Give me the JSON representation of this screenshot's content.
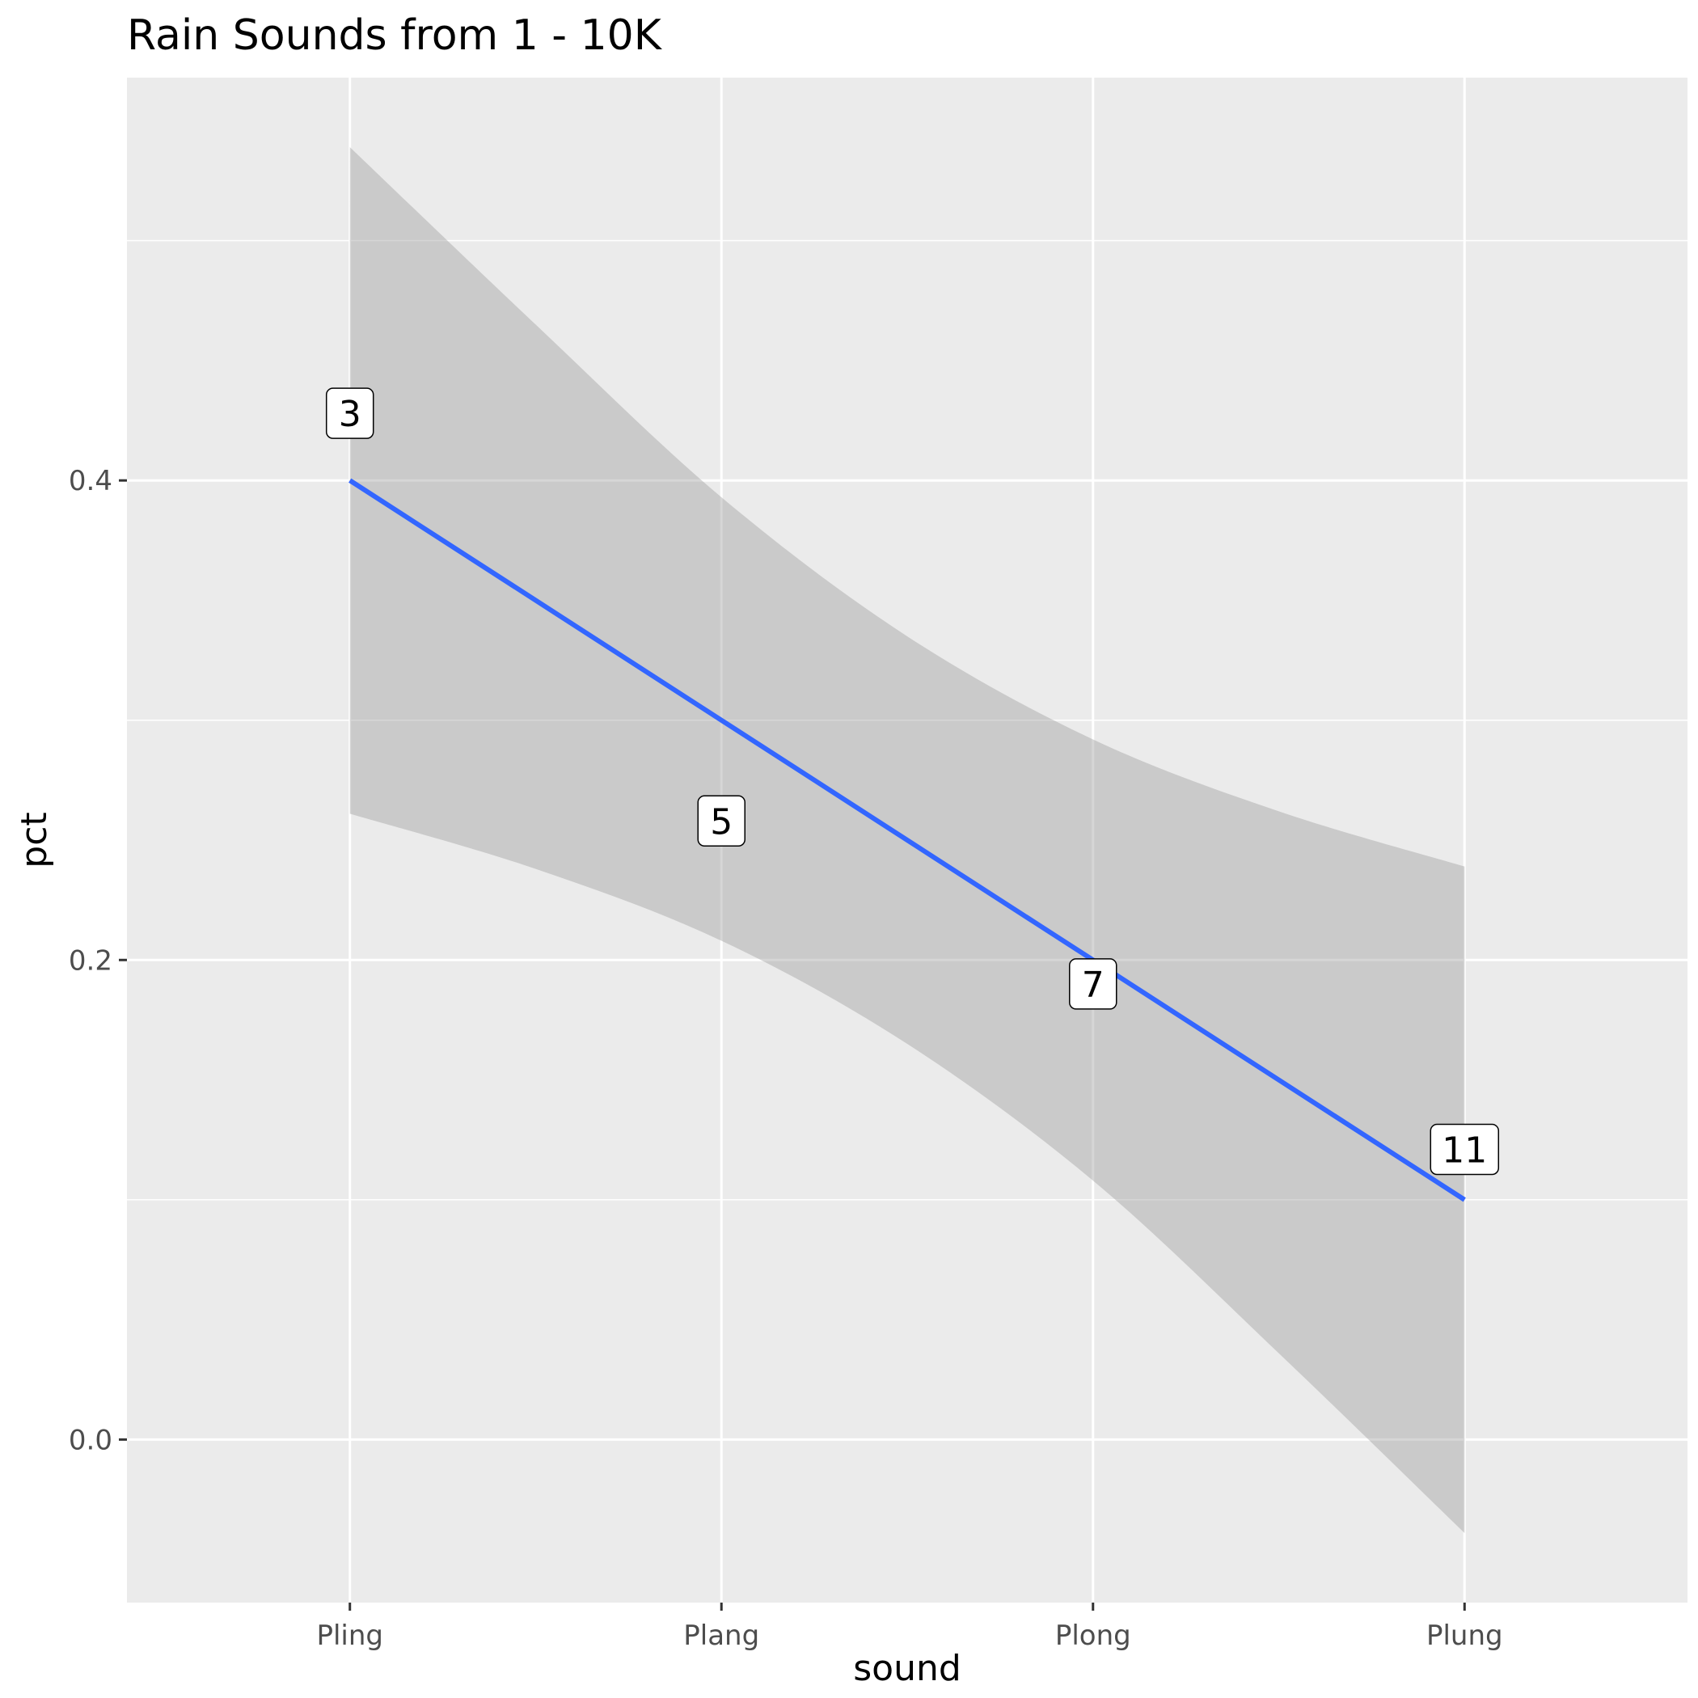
{
  "chart_data": {
    "type": "line",
    "title": "Rain Sounds from 1 - 10K",
    "xlabel": "sound",
    "ylabel": "pct",
    "categories": [
      "Pling",
      "Plang",
      "Plong",
      "Plung"
    ],
    "x_positions": [
      1,
      2,
      3,
      4
    ],
    "xlim": [
      0.4,
      4.6
    ],
    "ylim": [
      -0.068,
      0.568
    ],
    "y_ticks": [
      {
        "value": 0.0,
        "label": "0.0"
      },
      {
        "value": 0.2,
        "label": "0.2"
      },
      {
        "value": 0.4,
        "label": "0.4"
      }
    ],
    "y_minor_ticks": [
      0.1,
      0.3,
      0.5
    ],
    "fit_line": {
      "x": [
        1,
        4
      ],
      "y": [
        0.4,
        0.1
      ],
      "color": "#3366FF"
    },
    "confidence_band": {
      "x": [
        1.0,
        1.5,
        2.0,
        2.5,
        3.0,
        3.5,
        4.0
      ],
      "upper": [
        0.539,
        0.465,
        0.393,
        0.335,
        0.292,
        0.262,
        0.239
      ],
      "lower": [
        0.261,
        0.238,
        0.208,
        0.165,
        0.108,
        0.036,
        -0.039
      ],
      "color": "#999999"
    },
    "labels": [
      {
        "x": 1,
        "y": 0.428,
        "text": "3"
      },
      {
        "x": 2,
        "y": 0.258,
        "text": "5"
      },
      {
        "x": 3,
        "y": 0.19,
        "text": "7"
      },
      {
        "x": 4,
        "y": 0.121,
        "text": "11"
      }
    ],
    "grid": true,
    "panel_color": "#EBEBEB",
    "legend": "none"
  }
}
